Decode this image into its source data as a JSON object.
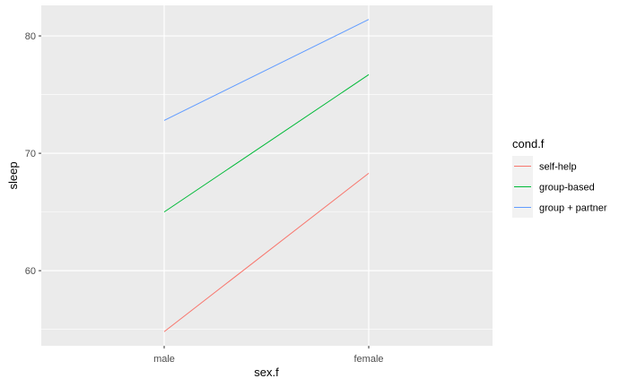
{
  "chart_data": {
    "type": "line",
    "categories": [
      "male",
      "female"
    ],
    "series": [
      {
        "name": "self-help",
        "values": [
          54.8,
          68.3
        ],
        "color": "#F8766D"
      },
      {
        "name": "group-based",
        "values": [
          65.0,
          76.7
        ],
        "color": "#00BA38"
      },
      {
        "name": "group + partner",
        "values": [
          72.8,
          81.4
        ],
        "color": "#619CFF"
      }
    ],
    "xlabel": "sex.f",
    "ylabel": "sleep",
    "ylim": [
      53.6,
      82.6
    ],
    "yticks": [
      60,
      70,
      80
    ],
    "legend_title": "cond.f",
    "legend_position": "right",
    "grid": true,
    "panel_background": "#EBEBEB",
    "grid_color": "#FFFFFF"
  }
}
